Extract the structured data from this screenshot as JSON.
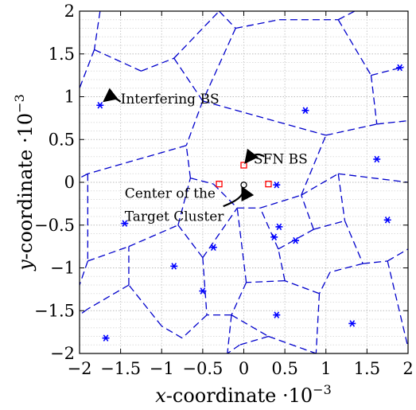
{
  "chart_data": {
    "type": "scatter",
    "title": "",
    "xlabel_math": "x",
    "xlabel_text": "-coordinate ·10",
    "xlabel_exp": "−3",
    "ylabel_math": "y",
    "ylabel_text": "-coordinate ·10",
    "ylabel_exp": "−3",
    "xlim": [
      -2,
      2
    ],
    "ylim": [
      -2,
      2
    ],
    "grid": true,
    "minor_grid": true,
    "xticks": [
      -2,
      -1.5,
      -1,
      -0.5,
      0,
      0.5,
      1,
      1.5,
      2
    ],
    "xtick_labels": [
      "−2",
      "−1.5",
      "−1",
      "−0.5",
      "0",
      "0.5",
      "1",
      "1.5",
      "2"
    ],
    "yticks": [
      2,
      1.5,
      1,
      0.5,
      0,
      -0.5,
      -1,
      -1.5,
      -2
    ],
    "ytick_labels": [
      "2",
      "1.5",
      "1",
      "0.5",
      "0",
      "−0.5",
      "−1",
      "−1.5",
      "−2"
    ],
    "colors": {
      "interfering": "#0000ff",
      "sfn": "#ff0000",
      "voronoi": "#0000cc",
      "grid": "#c8c8c8"
    },
    "series": [
      {
        "marker": "asterisk",
        "color": "#0000ff",
        "points": [
          [
            -1.75,
            0.9
          ],
          [
            0.75,
            0.84
          ],
          [
            1.9,
            1.34
          ],
          [
            1.62,
            0.27
          ],
          [
            0.4,
            -0.03
          ],
          [
            1.75,
            -0.44
          ],
          [
            -1.45,
            -0.48
          ],
          [
            0.43,
            -0.52
          ],
          [
            0.37,
            -0.64
          ],
          [
            0.63,
            -0.68
          ],
          [
            -0.37,
            -0.76
          ],
          [
            -0.85,
            -0.98
          ],
          [
            -0.5,
            -1.27
          ],
          [
            0.4,
            -1.55
          ],
          [
            1.32,
            -1.65
          ],
          [
            -1.68,
            -1.82
          ]
        ]
      },
      {
        "marker": "square",
        "color": "#ff0000",
        "points": [
          [
            -0.3,
            -0.02
          ],
          [
            0.0,
            0.2
          ],
          [
            0.3,
            -0.02
          ]
        ]
      },
      {
        "marker": "circle",
        "color": "#000000",
        "points": [
          [
            0.0,
            -0.03
          ]
        ]
      }
    ],
    "voronoi_edges": [
      [
        [
          -1.75,
          2.0
        ],
        [
          -1.82,
          1.55
        ]
      ],
      [
        [
          -1.82,
          1.55
        ],
        [
          -2.0,
          1.1
        ]
      ],
      [
        [
          -1.82,
          1.55
        ],
        [
          -1.25,
          1.3
        ]
      ],
      [
        [
          -1.25,
          1.3
        ],
        [
          -0.85,
          1.45
        ]
      ],
      [
        [
          -0.85,
          1.45
        ],
        [
          -0.3,
          2.0
        ]
      ],
      [
        [
          -0.85,
          1.45
        ],
        [
          -0.5,
          0.95
        ]
      ],
      [
        [
          -0.3,
          2.0
        ],
        [
          -0.1,
          1.8
        ]
      ],
      [
        [
          -0.1,
          1.8
        ],
        [
          0.43,
          1.9
        ]
      ],
      [
        [
          0.43,
          1.9
        ],
        [
          1.15,
          1.9
        ]
      ],
      [
        [
          1.15,
          1.9
        ],
        [
          1.35,
          2.0
        ]
      ],
      [
        [
          1.15,
          1.9
        ],
        [
          1.55,
          1.25
        ]
      ],
      [
        [
          1.55,
          1.25
        ],
        [
          1.95,
          1.35
        ]
      ],
      [
        [
          1.55,
          1.25
        ],
        [
          1.62,
          0.68
        ]
      ],
      [
        [
          1.62,
          0.68
        ],
        [
          2.0,
          0.72
        ]
      ],
      [
        [
          -0.1,
          1.8
        ],
        [
          -0.5,
          0.95
        ]
      ],
      [
        [
          -0.5,
          0.95
        ],
        [
          -0.7,
          0.43
        ]
      ],
      [
        [
          -0.5,
          0.95
        ],
        [
          1.0,
          0.55
        ]
      ],
      [
        [
          1.0,
          0.55
        ],
        [
          1.62,
          0.68
        ]
      ],
      [
        [
          -0.7,
          0.43
        ],
        [
          -1.9,
          0.1
        ]
      ],
      [
        [
          -1.9,
          0.1
        ],
        [
          -2.0,
          0.05
        ]
      ],
      [
        [
          -1.9,
          0.1
        ],
        [
          -1.9,
          -0.92
        ]
      ],
      [
        [
          -1.9,
          -0.92
        ],
        [
          -2.0,
          -1.2
        ]
      ],
      [
        [
          -1.9,
          -0.92
        ],
        [
          -1.4,
          -0.75
        ]
      ],
      [
        [
          -1.4,
          -0.75
        ],
        [
          -0.8,
          -0.5
        ]
      ],
      [
        [
          -0.8,
          -0.5
        ],
        [
          -0.65,
          0.05
        ]
      ],
      [
        [
          -0.65,
          0.05
        ],
        [
          -0.7,
          0.43
        ]
      ],
      [
        [
          -0.65,
          0.05
        ],
        [
          -0.37,
          -0.02
        ]
      ],
      [
        [
          -0.37,
          -0.02
        ],
        [
          -0.08,
          -0.3
        ]
      ],
      [
        [
          -0.08,
          -0.3
        ],
        [
          0.2,
          -0.3
        ]
      ],
      [
        [
          0.2,
          -0.3
        ],
        [
          0.7,
          -0.15
        ]
      ],
      [
        [
          0.7,
          -0.15
        ],
        [
          1.0,
          0.55
        ]
      ],
      [
        [
          0.7,
          -0.15
        ],
        [
          1.15,
          0.1
        ]
      ],
      [
        [
          1.15,
          0.1
        ],
        [
          2.0,
          0.0
        ]
      ],
      [
        [
          1.15,
          0.1
        ],
        [
          1.23,
          -0.45
        ]
      ],
      [
        [
          1.23,
          -0.45
        ],
        [
          1.45,
          -0.95
        ]
      ],
      [
        [
          1.45,
          -0.95
        ],
        [
          1.75,
          -0.92
        ]
      ],
      [
        [
          1.75,
          -0.92
        ],
        [
          2.0,
          -0.78
        ]
      ],
      [
        [
          1.75,
          -0.92
        ],
        [
          2.0,
          -1.93
        ]
      ],
      [
        [
          1.45,
          -0.95
        ],
        [
          1.05,
          -1.05
        ]
      ],
      [
        [
          1.05,
          -1.05
        ],
        [
          0.92,
          -1.3
        ]
      ],
      [
        [
          0.92,
          -1.3
        ],
        [
          0.88,
          -2.0
        ]
      ],
      [
        [
          0.92,
          -1.3
        ],
        [
          0.5,
          -1.15
        ]
      ],
      [
        [
          0.5,
          -1.15
        ],
        [
          0.03,
          -1.17
        ]
      ],
      [
        [
          0.03,
          -1.17
        ],
        [
          -0.08,
          -0.3
        ]
      ],
      [
        [
          0.03,
          -1.17
        ],
        [
          -0.15,
          -1.55
        ]
      ],
      [
        [
          -0.15,
          -1.55
        ],
        [
          -0.2,
          -2.0
        ]
      ],
      [
        [
          -0.15,
          -1.55
        ],
        [
          -0.45,
          -1.55
        ]
      ],
      [
        [
          -0.45,
          -1.55
        ],
        [
          -0.75,
          -1.82
        ]
      ],
      [
        [
          -0.75,
          -1.82
        ],
        [
          -1.0,
          -1.68
        ]
      ],
      [
        [
          -1.0,
          -1.68
        ],
        [
          -1.4,
          -1.2
        ]
      ],
      [
        [
          -1.4,
          -1.2
        ],
        [
          -1.9,
          -1.48
        ]
      ],
      [
        [
          -1.9,
          -1.48
        ],
        [
          -2.0,
          -1.55
        ]
      ],
      [
        [
          -1.4,
          -1.2
        ],
        [
          -1.4,
          -0.75
        ]
      ],
      [
        [
          -0.8,
          -0.5
        ],
        [
          -0.5,
          -0.88
        ]
      ],
      [
        [
          -0.5,
          -0.88
        ],
        [
          -0.45,
          -1.55
        ]
      ],
      [
        [
          -0.5,
          -0.88
        ],
        [
          -0.08,
          -0.3
        ]
      ],
      [
        [
          0.5,
          -1.15
        ],
        [
          0.42,
          -0.78
        ]
      ],
      [
        [
          0.42,
          -0.78
        ],
        [
          0.2,
          -0.3
        ]
      ],
      [
        [
          0.42,
          -0.78
        ],
        [
          0.85,
          -0.55
        ]
      ],
      [
        [
          0.85,
          -0.55
        ],
        [
          1.23,
          -0.45
        ]
      ],
      [
        [
          0.85,
          -0.55
        ],
        [
          0.7,
          -0.15
        ]
      ],
      [
        [
          -0.15,
          -1.55
        ],
        [
          0.3,
          -1.8
        ]
      ],
      [
        [
          0.3,
          -1.8
        ],
        [
          0.88,
          -2.0
        ]
      ],
      [
        [
          0.3,
          -1.8
        ],
        [
          -0.05,
          -1.9
        ]
      ],
      [
        [
          -0.05,
          -1.9
        ],
        [
          -0.2,
          -2.0
        ]
      ]
    ],
    "annotations": [
      {
        "text": "Interfering BS",
        "text_at": [
          -1.5,
          0.92
        ],
        "arrow_from": [
          -1.5,
          0.94
        ],
        "arrow_to": [
          -1.7,
          0.95
        ]
      },
      {
        "text": "SFN BS",
        "text_at": [
          0.12,
          0.22
        ],
        "arrow_from": [
          0.25,
          0.3
        ],
        "arrow_to": [
          0.02,
          0.23
        ]
      },
      {
        "text": "Center of the",
        "text_at": [
          -1.45,
          -0.18
        ],
        "arrow_from": [
          -0.25,
          -0.28
        ],
        "arrow_to": [
          -0.02,
          -0.06
        ]
      },
      {
        "text": "Target Cluster",
        "text_at": [
          -1.45,
          -0.45
        ],
        "arrow_from": null,
        "arrow_to": null
      }
    ]
  }
}
